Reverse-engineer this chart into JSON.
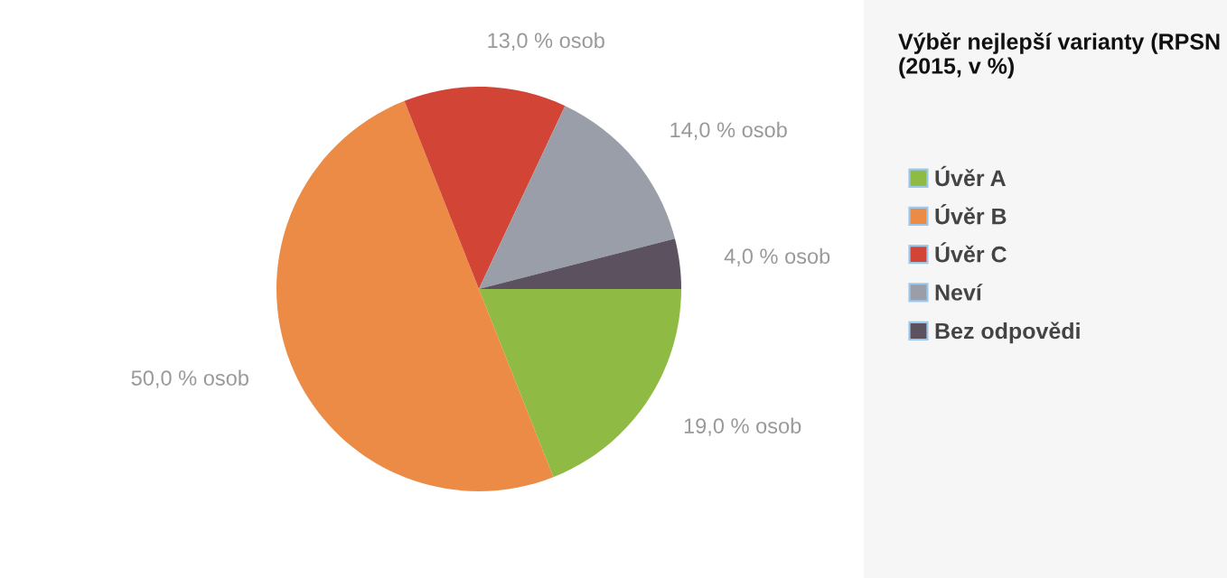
{
  "chart_data": {
    "type": "pie",
    "title": "Výběr nejlepší varianty (RPSN (2015, v %)",
    "categories": [
      "Úvěr A",
      "Úvěr B",
      "Úvěr C",
      "Neví",
      "Bez odpovědi"
    ],
    "values": [
      19,
      50,
      13,
      14,
      4
    ],
    "colors": [
      "#8fba44",
      "#eb8b45",
      "#d24436",
      "#9a9ea9",
      "#5b515f"
    ],
    "value_labels": [
      "19,0 % osob",
      "50,0 % osob",
      "13,0 % osob",
      "14,0 % osob",
      "4,0 % osob"
    ],
    "legend": "right"
  }
}
